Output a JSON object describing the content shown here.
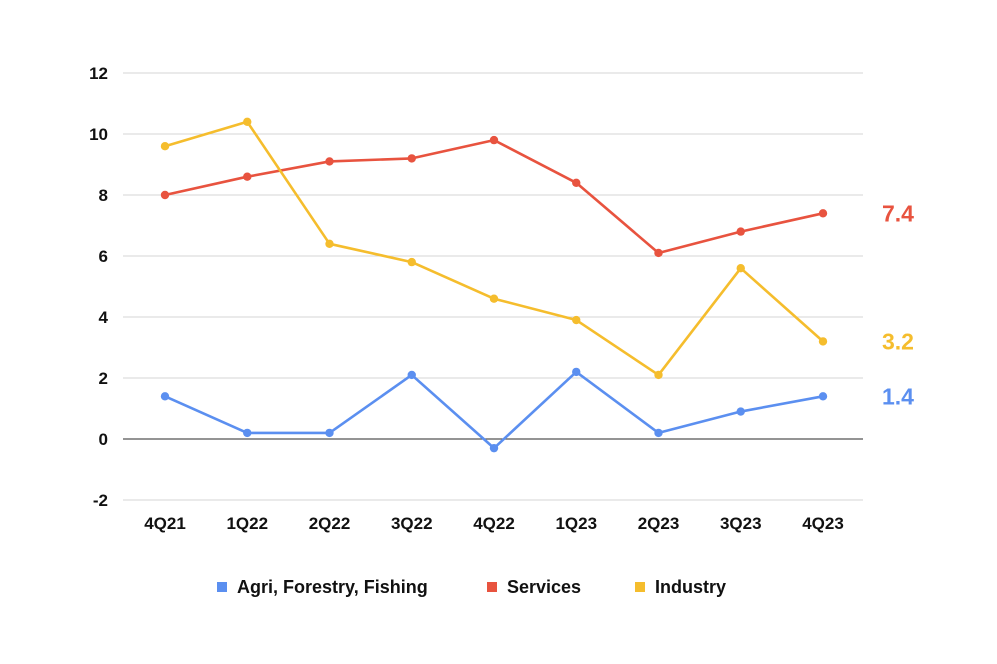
{
  "chart_data": {
    "type": "line",
    "title": "",
    "xlabel": "",
    "ylabel": "",
    "categories": [
      "4Q21",
      "1Q22",
      "2Q22",
      "3Q22",
      "4Q22",
      "1Q23",
      "2Q23",
      "3Q23",
      "4Q23"
    ],
    "y_ticks": [
      "12",
      "10",
      "8",
      "6",
      "4",
      "2",
      "0",
      "-2"
    ],
    "ylim": [
      -2,
      12
    ],
    "grid": true,
    "legend_position": "bottom",
    "series": [
      {
        "name": "Agri, Forestry, Fishing",
        "color": "#5b8ff0",
        "values": [
          1.4,
          0.2,
          0.2,
          2.1,
          -0.3,
          2.2,
          0.2,
          0.9,
          1.4
        ],
        "end_label": "1.4"
      },
      {
        "name": "Services",
        "color": "#e8533f",
        "values": [
          8.0,
          8.6,
          9.1,
          9.2,
          9.8,
          8.4,
          6.1,
          6.8,
          7.4
        ],
        "end_label": "7.4"
      },
      {
        "name": "Industry",
        "color": "#f5bd2d",
        "values": [
          9.6,
          10.4,
          6.4,
          5.8,
          4.6,
          3.9,
          2.1,
          5.6,
          3.2
        ],
        "end_label": "3.2"
      }
    ]
  }
}
